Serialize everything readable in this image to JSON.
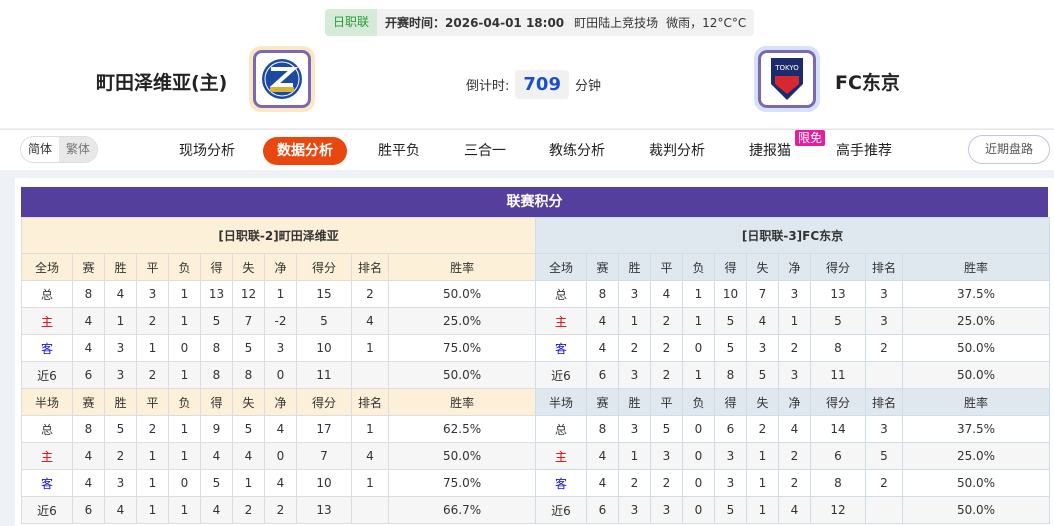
{
  "match": {
    "league": "日职联",
    "time_label": "开赛时间：2026-04-01 18:00",
    "venue": "町田陆上竞技场",
    "weather": "微雨，12°C°C",
    "home_team": "町田泽维亚(主)",
    "away_team": "FC东京",
    "countdown_label": "倒计时:",
    "countdown_value": "709",
    "countdown_unit": "分钟"
  },
  "lang": {
    "simplified": "简体",
    "traditional": "繁体"
  },
  "nav": {
    "items": [
      "现场分析",
      "数据分析",
      "胜平负",
      "三合一",
      "教练分析",
      "裁判分析",
      "捷报猫",
      "高手推荐"
    ],
    "active": "数据分析",
    "badge": "限免",
    "recent": "近期盘路"
  },
  "standings": {
    "title": "联赛积分",
    "columns_full": [
      "全场",
      "赛",
      "胜",
      "平",
      "负",
      "得",
      "失",
      "净",
      "得分",
      "排名",
      "胜率"
    ],
    "columns_half": [
      "半场",
      "赛",
      "胜",
      "平",
      "负",
      "得",
      "失",
      "净",
      "得分",
      "排名",
      "胜率"
    ],
    "home": {
      "header": "[日职联-2]町田泽维亚",
      "full": [
        [
          "总",
          "8",
          "4",
          "3",
          "1",
          "13",
          "12",
          "1",
          "15",
          "2",
          "50.0%"
        ],
        [
          "主",
          "4",
          "1",
          "2",
          "1",
          "5",
          "7",
          "-2",
          "5",
          "4",
          "25.0%"
        ],
        [
          "客",
          "4",
          "3",
          "1",
          "0",
          "8",
          "5",
          "3",
          "10",
          "1",
          "75.0%"
        ],
        [
          "近6",
          "6",
          "3",
          "2",
          "1",
          "8",
          "8",
          "0",
          "11",
          "",
          "50.0%"
        ]
      ],
      "half": [
        [
          "总",
          "8",
          "5",
          "2",
          "1",
          "9",
          "5",
          "4",
          "17",
          "1",
          "62.5%"
        ],
        [
          "主",
          "4",
          "2",
          "1",
          "1",
          "4",
          "4",
          "0",
          "7",
          "4",
          "50.0%"
        ],
        [
          "客",
          "4",
          "3",
          "1",
          "0",
          "5",
          "1",
          "4",
          "10",
          "1",
          "75.0%"
        ],
        [
          "近6",
          "6",
          "4",
          "1",
          "1",
          "4",
          "2",
          "2",
          "13",
          "",
          "66.7%"
        ]
      ]
    },
    "away": {
      "header": "[日职联-3]FC东京",
      "full": [
        [
          "总",
          "8",
          "3",
          "4",
          "1",
          "10",
          "7",
          "3",
          "13",
          "3",
          "37.5%"
        ],
        [
          "主",
          "4",
          "1",
          "2",
          "1",
          "5",
          "4",
          "1",
          "5",
          "3",
          "25.0%"
        ],
        [
          "客",
          "4",
          "2",
          "2",
          "0",
          "5",
          "3",
          "2",
          "8",
          "2",
          "50.0%"
        ],
        [
          "近6",
          "6",
          "3",
          "2",
          "1",
          "8",
          "5",
          "3",
          "11",
          "",
          "50.0%"
        ]
      ],
      "half": [
        [
          "总",
          "8",
          "3",
          "5",
          "0",
          "6",
          "2",
          "4",
          "14",
          "3",
          "37.5%"
        ],
        [
          "主",
          "4",
          "1",
          "3",
          "0",
          "3",
          "1",
          "2",
          "6",
          "5",
          "25.0%"
        ],
        [
          "客",
          "4",
          "2",
          "2",
          "0",
          "3",
          "1",
          "2",
          "8",
          "2",
          "50.0%"
        ],
        [
          "近6",
          "6",
          "3",
          "3",
          "0",
          "5",
          "1",
          "4",
          "12",
          "",
          "50.0%"
        ]
      ]
    }
  },
  "colors": {
    "accent": "#e8470f",
    "title_bar": "#553f9d",
    "home_label": "#dd0000",
    "away_label": "#1515d0"
  }
}
